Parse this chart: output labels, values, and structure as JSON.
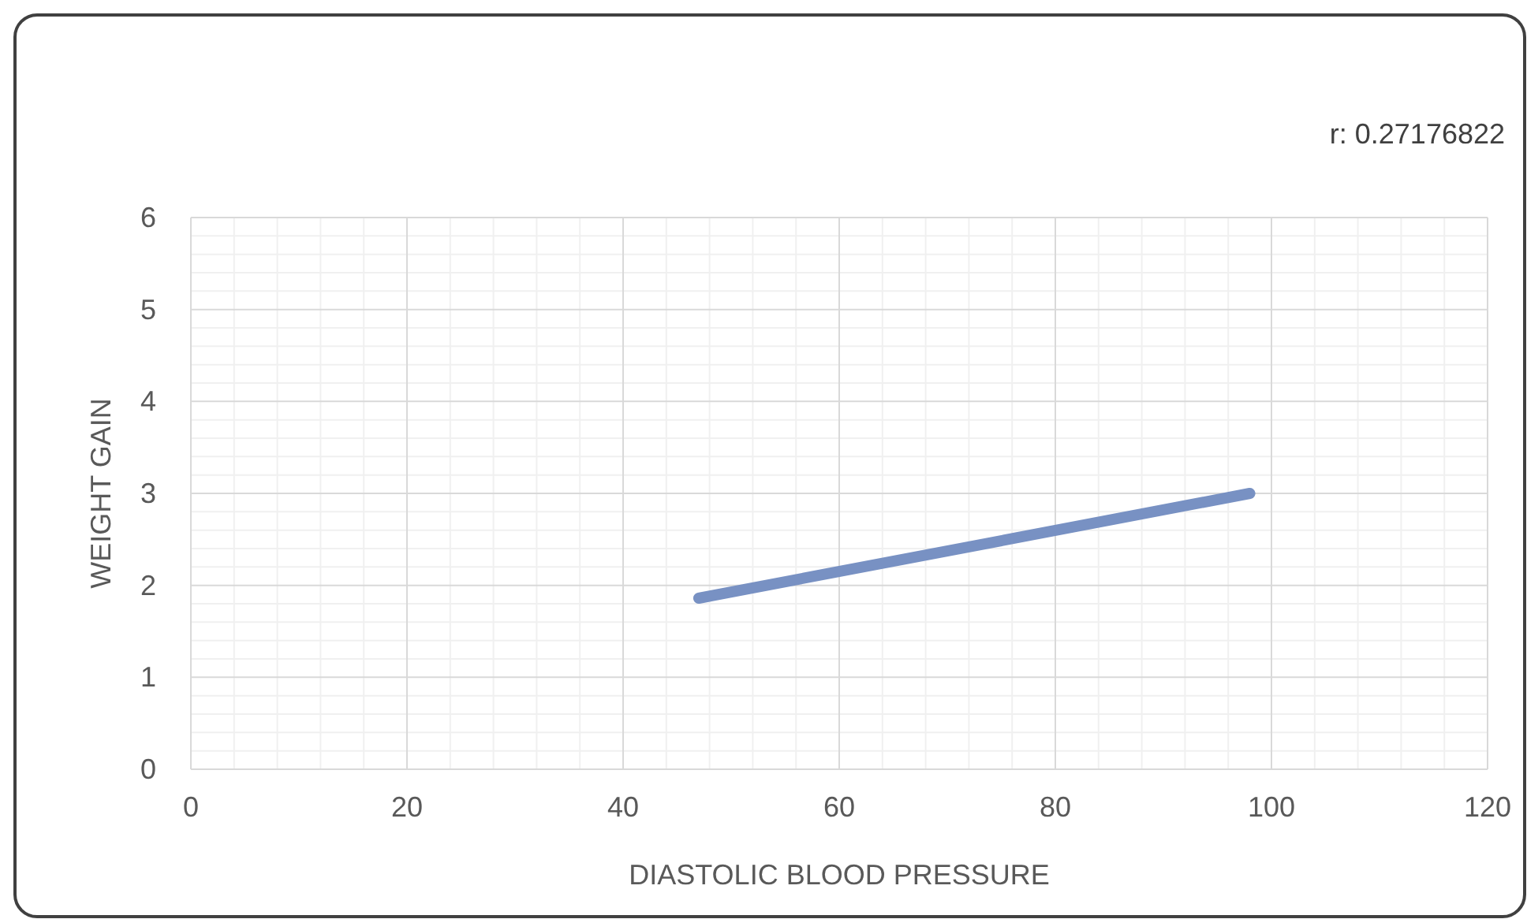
{
  "chart_data": {
    "type": "line",
    "xlabel": "DIASTOLIC BLOOD PRESSURE",
    "ylabel": "WEIGHT GAIN",
    "x": [
      47,
      98
    ],
    "series": [
      {
        "color": "#7891c3",
        "values": [
          1.86,
          3.0
        ]
      }
    ],
    "xlim": [
      0,
      120
    ],
    "xticks": [
      0,
      20,
      40,
      60,
      80,
      100,
      120
    ],
    "ylim": [
      0,
      6
    ],
    "yticks": [
      0,
      1,
      2,
      3,
      4,
      5,
      6
    ],
    "grid": true,
    "marker": "none",
    "line_style": "solid",
    "annotations": [
      "r: 0.27176822"
    ]
  }
}
